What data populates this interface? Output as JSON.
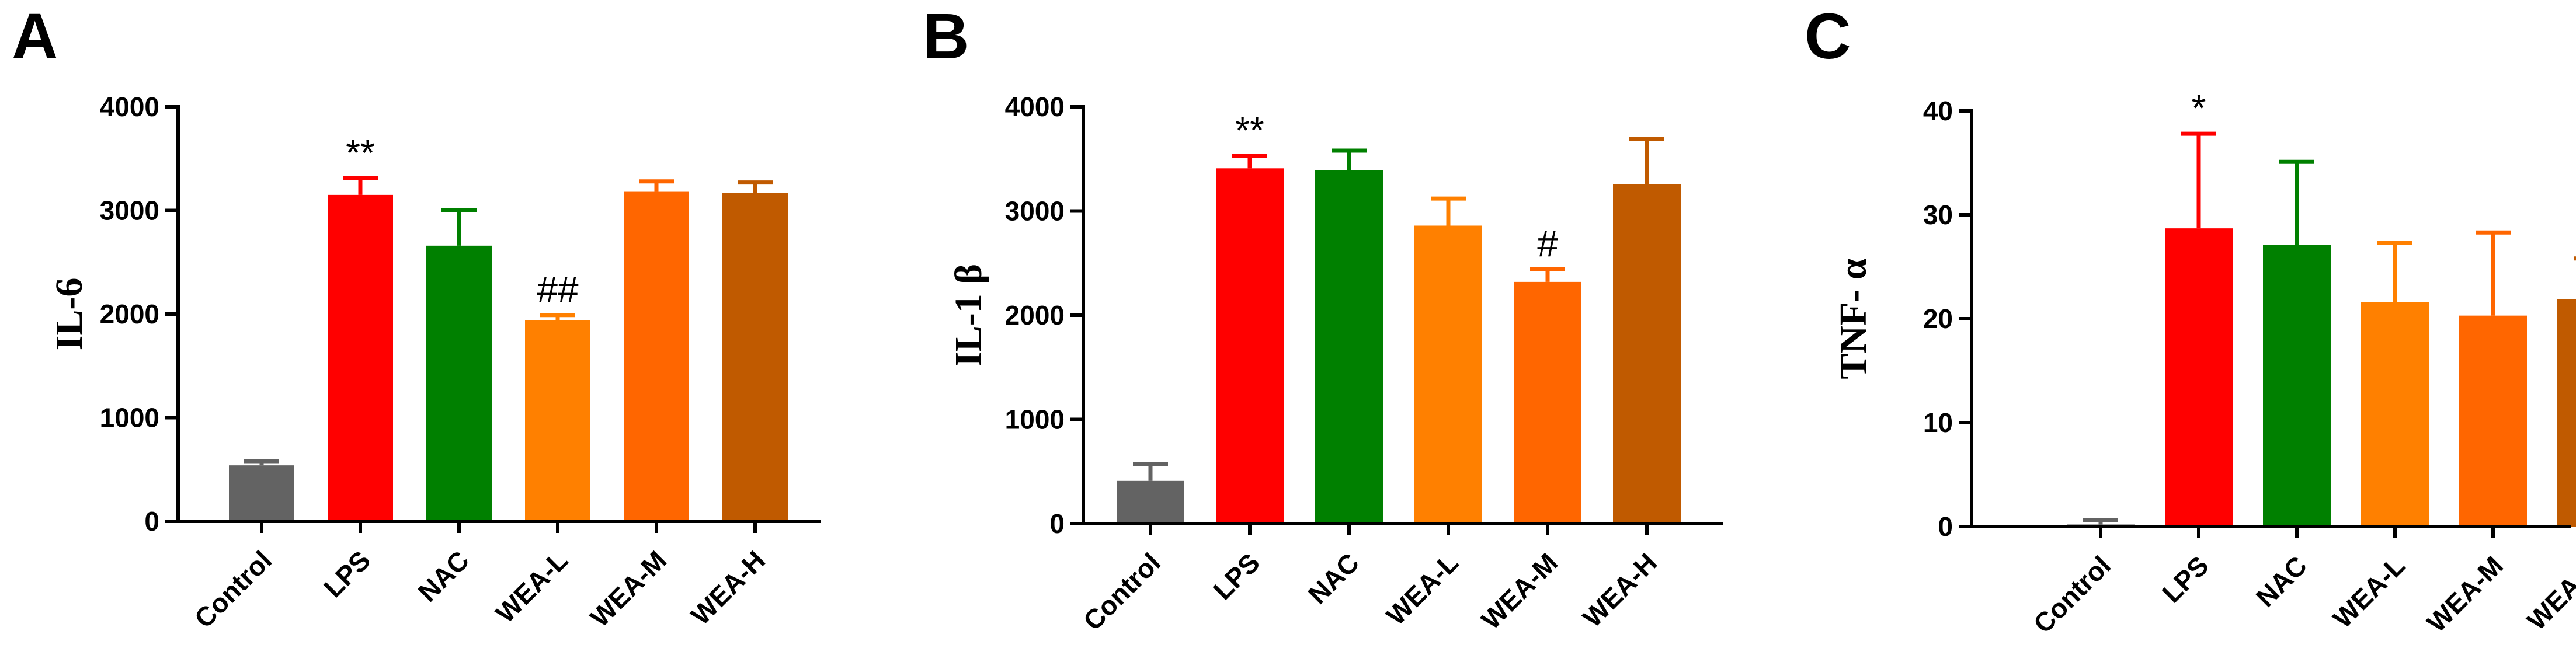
{
  "chart_data": [
    {
      "type": "bar",
      "panel": "A",
      "ylabel": "IL-6",
      "ylim": [
        0,
        4000
      ],
      "yticks": [
        "0",
        "1000",
        "2000",
        "3000",
        "4000"
      ],
      "categories": [
        "Control",
        "LPS",
        "NAC",
        "WEA-L",
        "WEA-M",
        "WEA-H"
      ],
      "values": [
        540,
        3150,
        2660,
        1940,
        3180,
        3170
      ],
      "errors": [
        40,
        160,
        340,
        50,
        100,
        100
      ],
      "colors": [
        "#636363",
        "#ff0000",
        "#008000",
        "#ff8000",
        "#ff6600",
        "#c05a00"
      ],
      "annotations": [
        "",
        "**",
        "",
        "##",
        "",
        ""
      ]
    },
    {
      "type": "bar",
      "panel": "B",
      "ylabel": "IL-1 β",
      "ylim": [
        0,
        4000
      ],
      "yticks": [
        "0",
        "1000",
        "2000",
        "3000",
        "4000"
      ],
      "categories": [
        "Control",
        "LPS",
        "NAC",
        "WEA-L",
        "WEA-M",
        "WEA-H"
      ],
      "values": [
        410,
        3410,
        3390,
        2860,
        2320,
        3260
      ],
      "errors": [
        160,
        120,
        190,
        260,
        120,
        430
      ],
      "colors": [
        "#636363",
        "#ff0000",
        "#008000",
        "#ff8000",
        "#ff6600",
        "#c05a00"
      ],
      "annotations": [
        "",
        "**",
        "",
        "",
        "#",
        ""
      ]
    },
    {
      "type": "bar",
      "panel": "C",
      "ylabel": "TNF- α",
      "ylim": [
        0,
        40
      ],
      "yticks": [
        "0",
        "10",
        "20",
        "30",
        "40"
      ],
      "categories": [
        "Control",
        "LPS",
        "NAC",
        "WEA-L",
        "WEA-M",
        "WEA-H"
      ],
      "values": [
        0.2,
        28.7,
        27.1,
        21.6,
        20.3,
        21.9
      ],
      "errors": [
        0.4,
        9.1,
        8.0,
        5.7,
        8.0,
        3.9
      ],
      "colors": [
        "#636363",
        "#ff0000",
        "#008000",
        "#ff8000",
        "#ff6600",
        "#c05a00"
      ],
      "annotations": [
        "",
        "*",
        "",
        "",
        "",
        ""
      ]
    }
  ]
}
